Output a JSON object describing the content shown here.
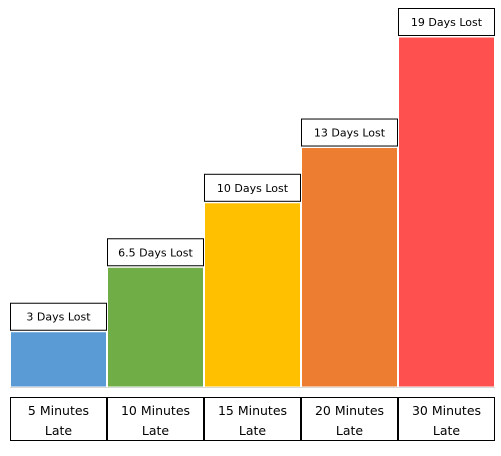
{
  "chart_data": {
    "type": "bar",
    "title": "",
    "xlabel": "",
    "ylabel": "",
    "ylim": [
      0,
      19
    ],
    "grid": false,
    "legend": "none",
    "categories": [
      "5 Minutes Late",
      "10 Minutes Late",
      "15 Minutes Late",
      "20 Minutes Late",
      "30 Minutes Late"
    ],
    "category_lines": [
      [
        "5 Minutes",
        "Late"
      ],
      [
        "10 Minutes",
        "Late"
      ],
      [
        "15 Minutes",
        "Late"
      ],
      [
        "20 Minutes",
        "Late"
      ],
      [
        "30 Minutes",
        "Late"
      ]
    ],
    "values": [
      3,
      6.5,
      10,
      13,
      19
    ],
    "data_labels": [
      "3 Days Lost",
      "6.5 Days Lost",
      "10 Days Lost",
      "13 Days Lost",
      "19 Days Lost"
    ],
    "colors": [
      "#5b9bd5",
      "#70ad47",
      "#ffc000",
      "#ed7d31",
      "#ff5050"
    ],
    "label_box_border": "#000000",
    "bar_border": "#ffffff"
  }
}
